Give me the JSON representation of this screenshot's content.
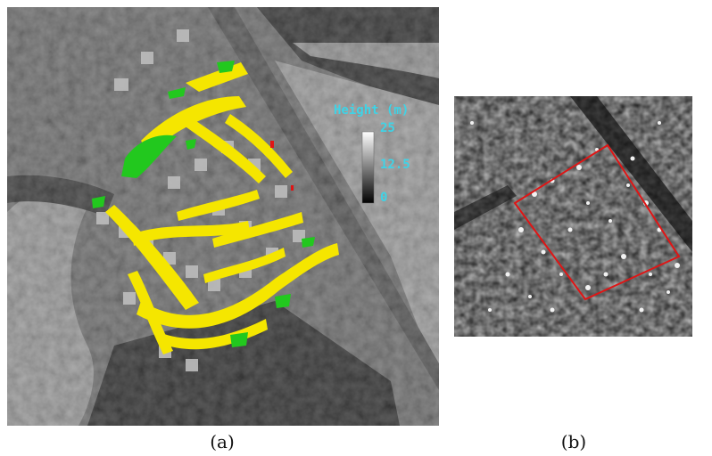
{
  "captions": {
    "a": "(a)",
    "b": "(b)"
  },
  "colorbar": {
    "title": "Height (m)",
    "max_label": "25",
    "mid_label": "12.5",
    "min_label": "0",
    "range_m": [
      0,
      25
    ],
    "text_color": "#3fd3e6"
  },
  "colors": {
    "overlay_yellow": "#f5e600",
    "overlay_green": "#22c81e",
    "selection_box": "#e01515",
    "sar_background": "#262626"
  },
  "icons": {
    "panel_a": "height-map-with-building-overlay",
    "panel_b": "sar-intensity-image-with-red-rectangle"
  }
}
